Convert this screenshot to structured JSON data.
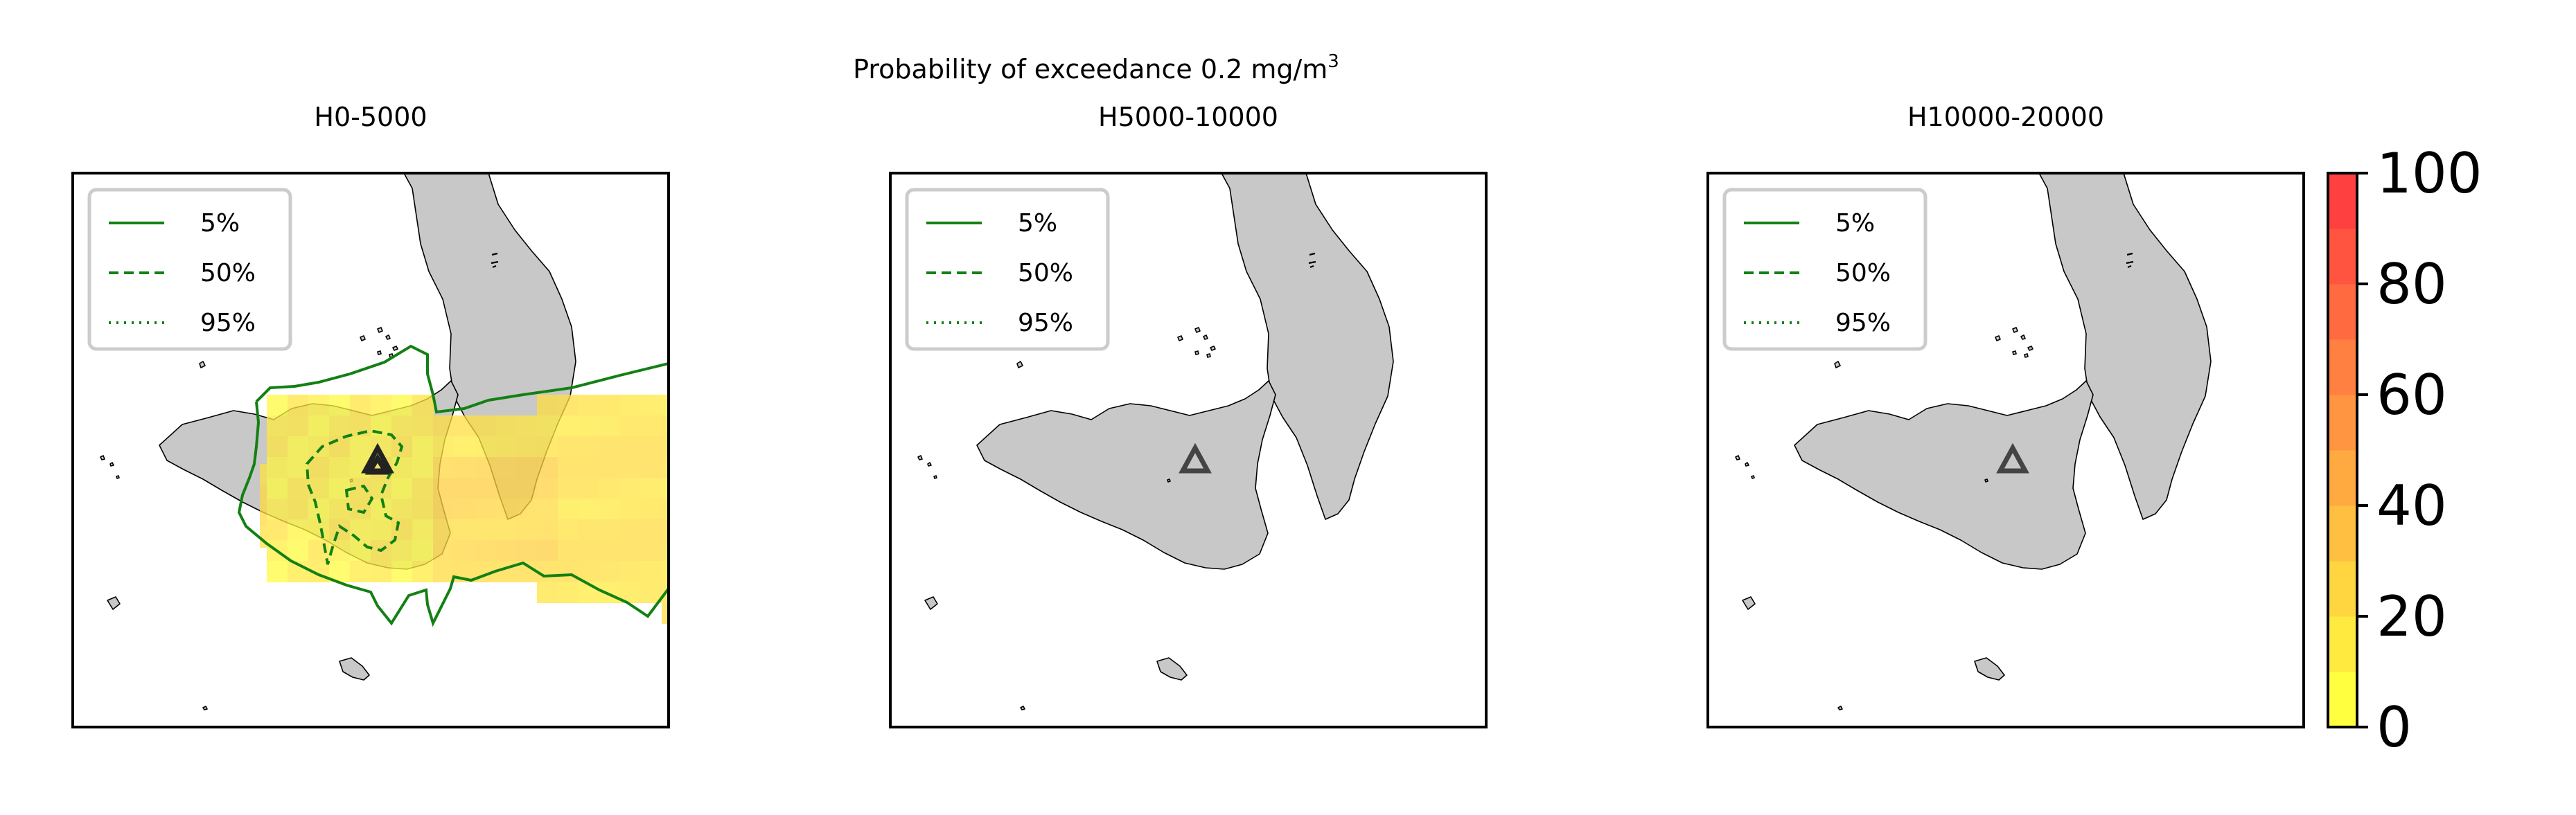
{
  "figure": {
    "title_line": "Probability of exceedance 0.2 mg/m",
    "title_superscript": "3"
  },
  "panels": [
    {
      "title": "H0-5000"
    },
    {
      "title": "H5000-10000"
    },
    {
      "title": "H10000-20000"
    }
  ],
  "legend": {
    "entries": [
      {
        "label": "5%",
        "style": "solid"
      },
      {
        "label": "50%",
        "style": "dashed"
      },
      {
        "label": "95%",
        "style": "dotted"
      }
    ],
    "line_color": "#138013"
  },
  "colorbar": {
    "ticks": [
      "0",
      "20",
      "40",
      "60",
      "80",
      "100"
    ],
    "min": 0,
    "max": 100,
    "levels": 10,
    "color_low": "#ffff40",
    "color_high": "#ff4040"
  },
  "colors": {
    "land": "#c8c8c8",
    "coast": "#000000",
    "vent_marker": "#444444"
  },
  "marker": {
    "icon": "triangle-vent-icon"
  }
}
